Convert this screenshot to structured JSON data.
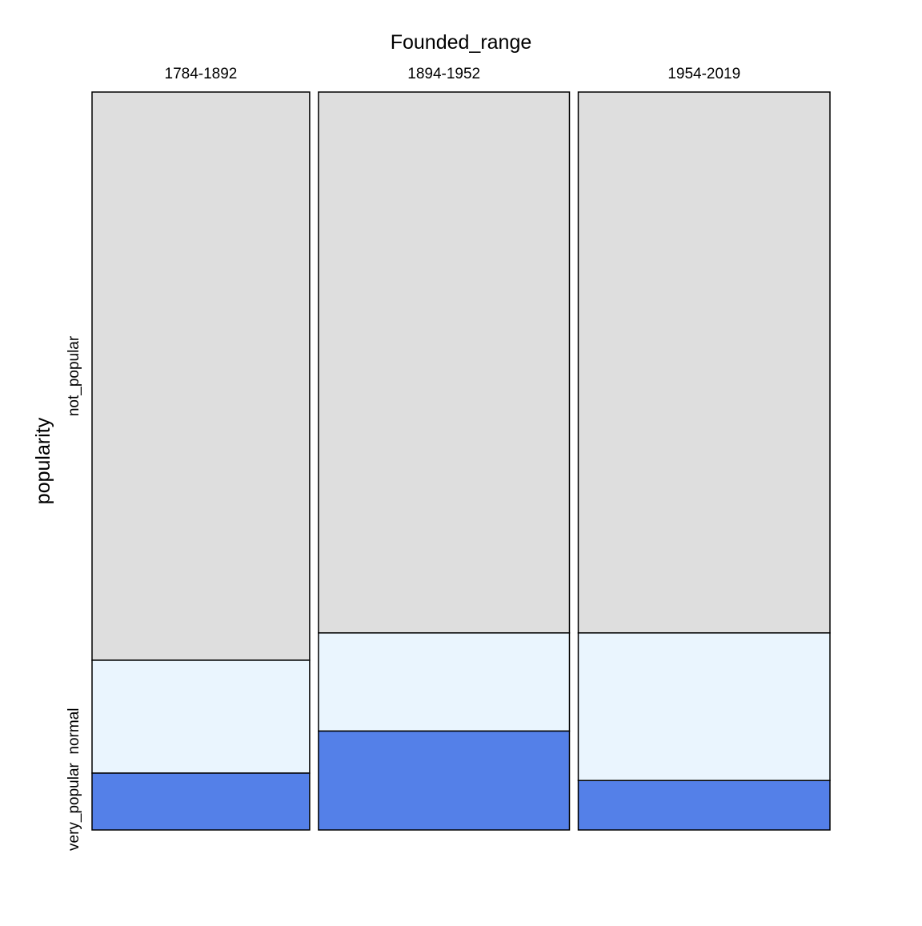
{
  "chart_data": {
    "type": "mosaic",
    "column_variable": "Founded_range",
    "row_variable": "popularity",
    "columns": [
      "1784-1892",
      "1894-1952",
      "1954-2019"
    ],
    "column_widths": [
      0.3,
      0.346,
      0.347
    ],
    "row_levels": [
      "not_popular",
      "normal",
      "very_popular"
    ],
    "row_axis_labels": [
      {
        "text": "not_popular",
        "level": "not_popular"
      },
      {
        "text": "very_popular  normal",
        "level": "very_popular"
      }
    ],
    "series": [
      {
        "name": "not_popular",
        "values": [
          0.77,
          0.733,
          0.733
        ]
      },
      {
        "name": "normal",
        "values": [
          0.153,
          0.133,
          0.2
        ]
      },
      {
        "name": "very_popular",
        "values": [
          0.077,
          0.134,
          0.067
        ]
      }
    ],
    "colors": {
      "not_popular": "#dedede",
      "normal": "#eaf5fe",
      "very_popular": "#5480e8"
    }
  }
}
